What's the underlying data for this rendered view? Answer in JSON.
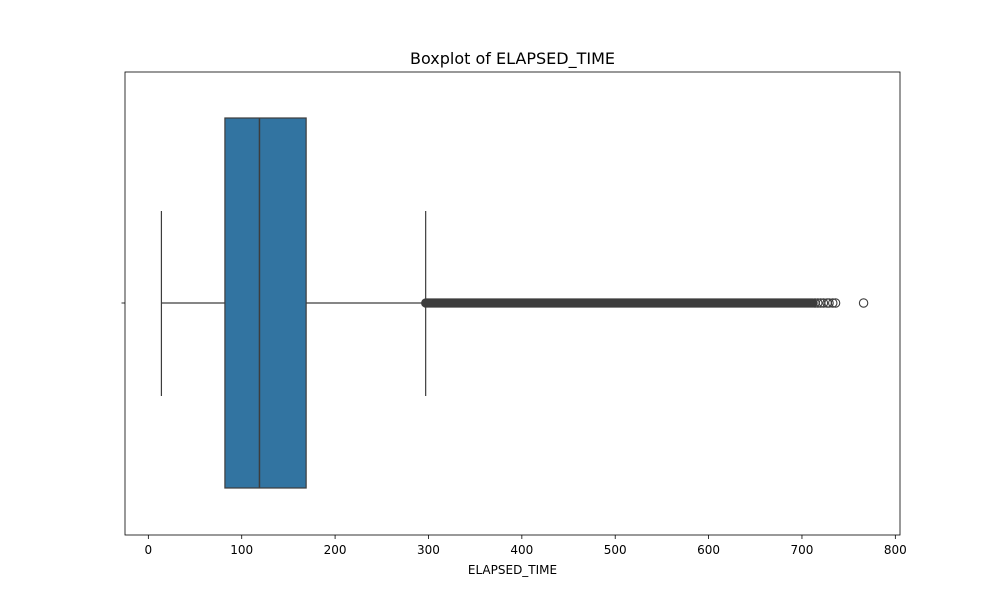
{
  "chart_data": {
    "type": "boxplot",
    "title": "Boxplot of ELAPSED_TIME",
    "xlabel": "ELAPSED_TIME",
    "ylabel": "",
    "orientation": "horizontal",
    "xlim": [
      -25,
      805
    ],
    "x_ticks": [
      0,
      100,
      200,
      300,
      400,
      500,
      600,
      700,
      800
    ],
    "grid": false,
    "legend": "none",
    "box_color": "#3274a1",
    "line_color": "#3d3d3d",
    "series": [
      {
        "whisker_low": 14,
        "q1": 82,
        "median": 119,
        "q3": 169,
        "whisker_high": 297,
        "dense_outlier_range": [
          297,
          712
        ],
        "outliers": [
          714,
          717,
          720,
          723,
          727,
          729,
          733,
          736,
          766
        ]
      }
    ]
  }
}
